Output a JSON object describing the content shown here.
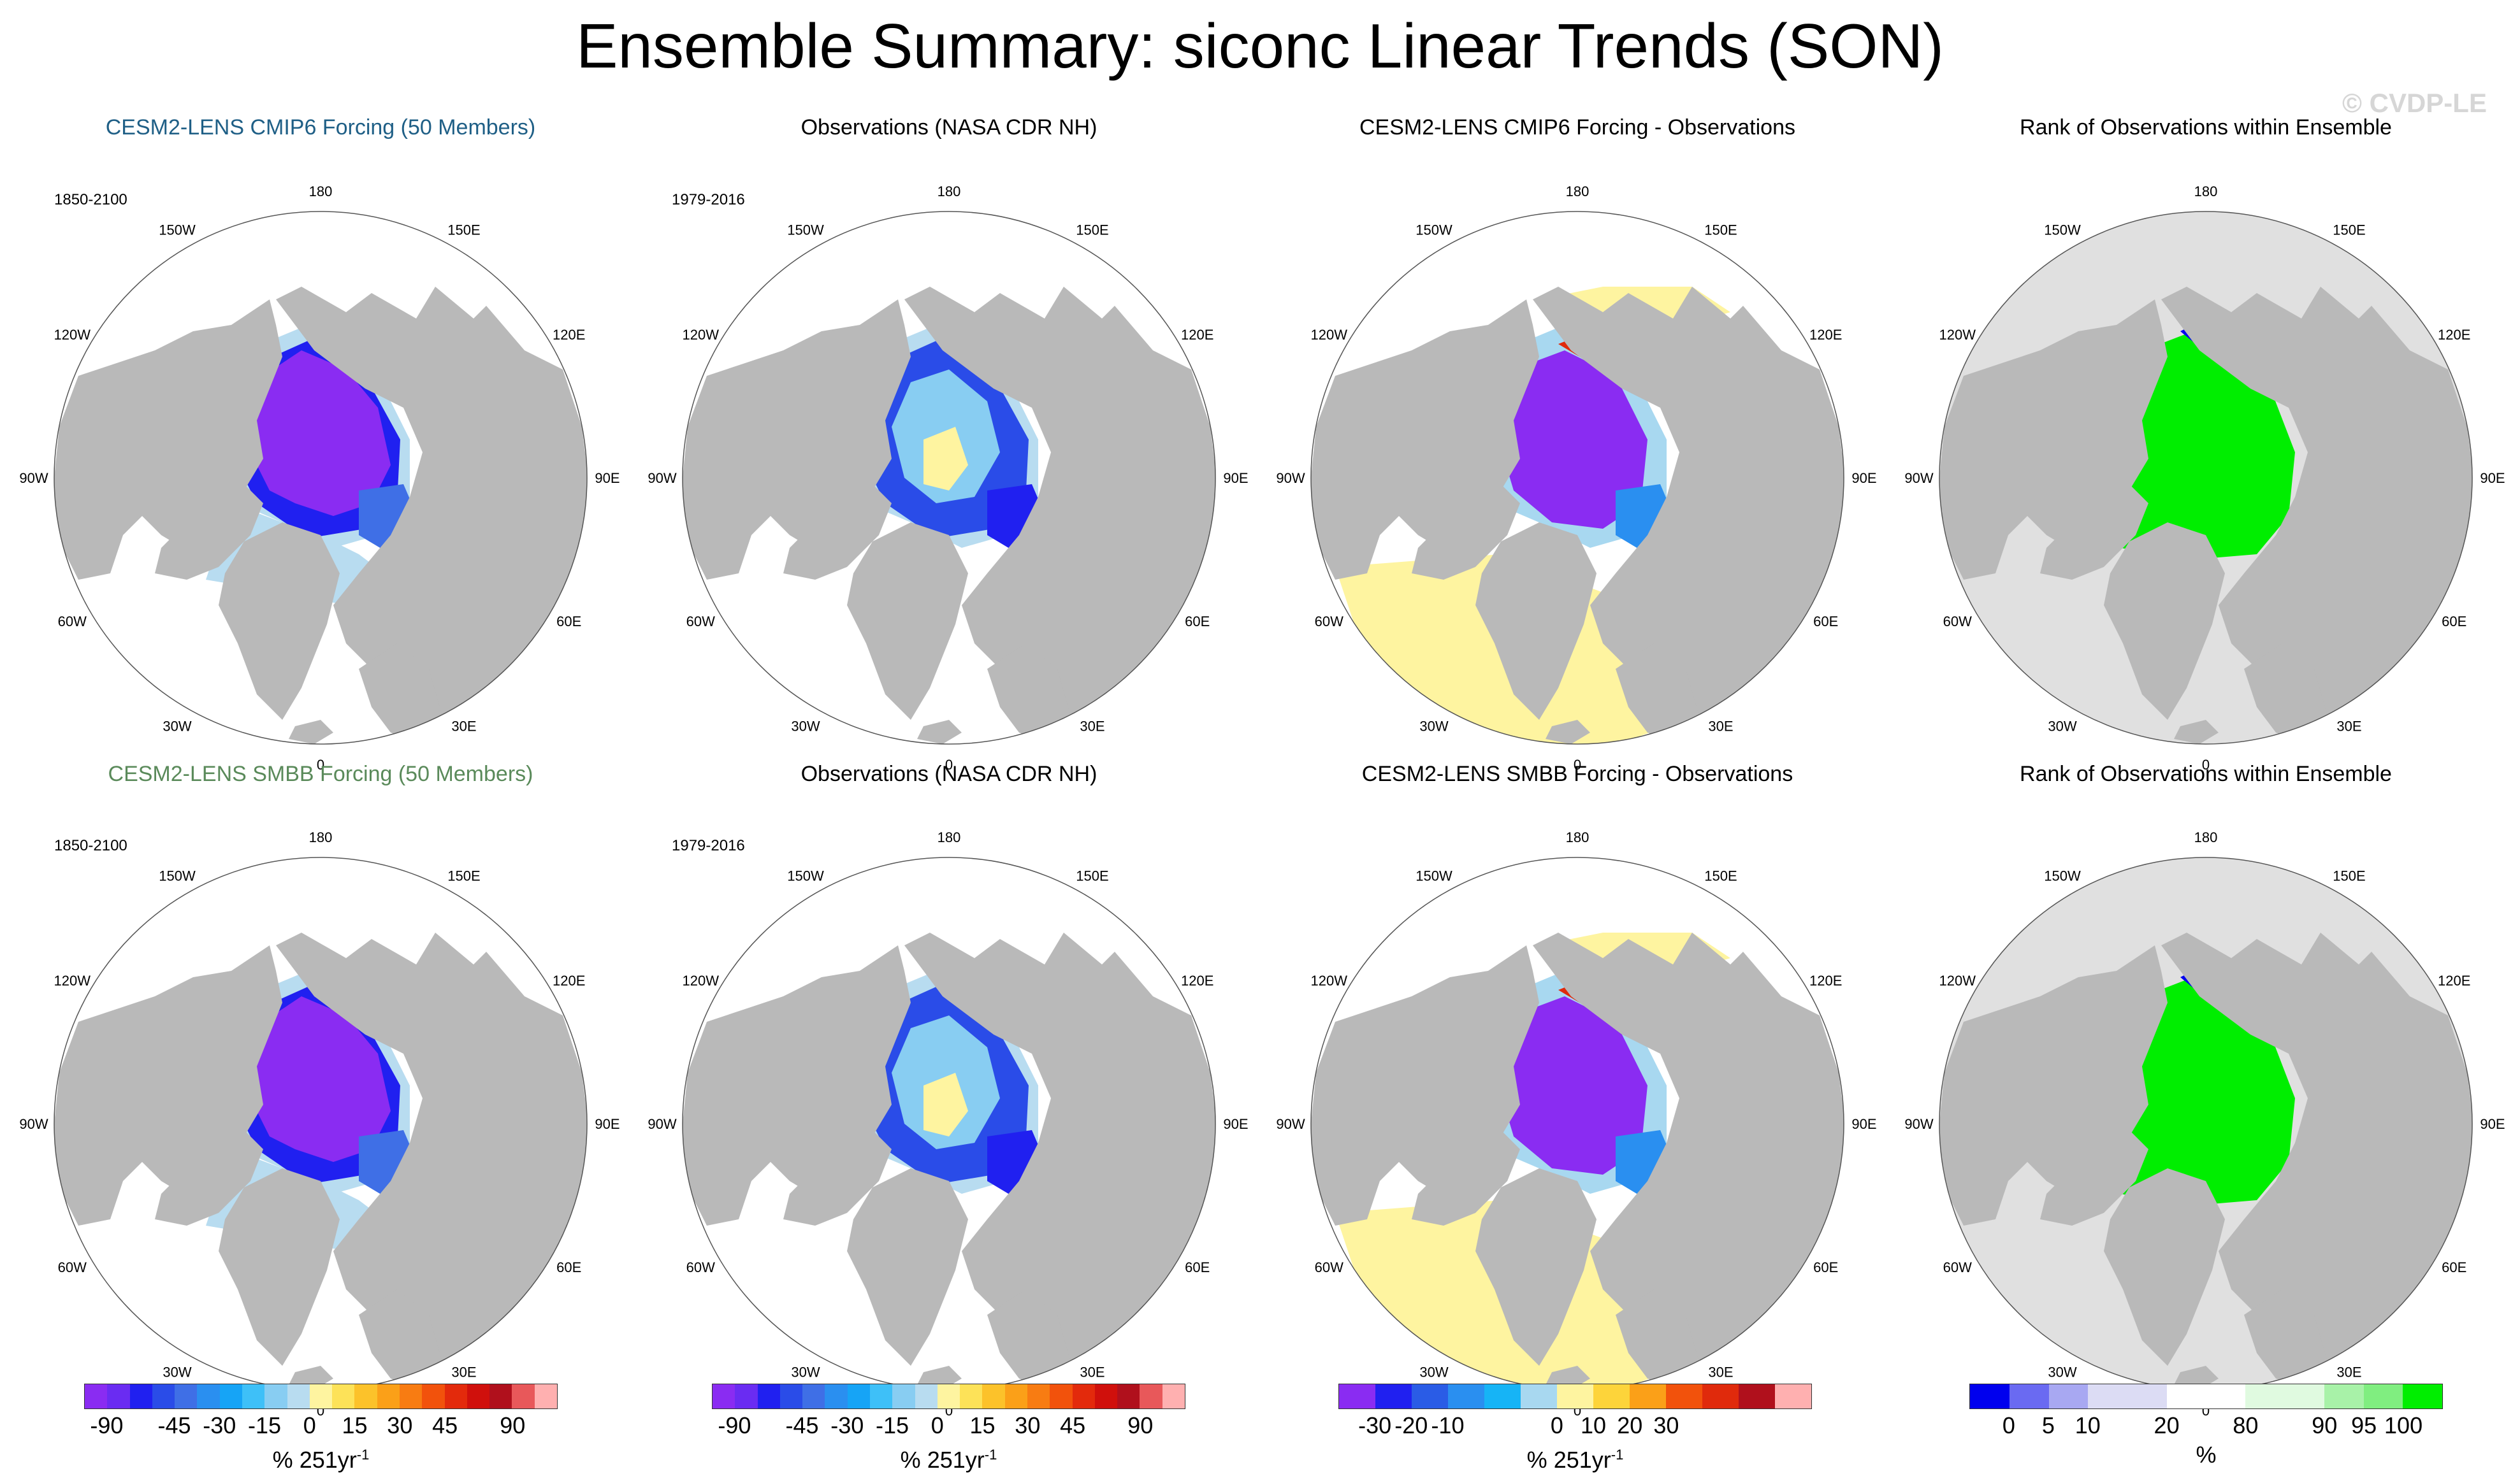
{
  "title": "Ensemble Summary: siconc Linear Trends (SON)",
  "watermark": "© CVDP-LE",
  "colors": {
    "land": "#b9b9b9",
    "rank_background": "#e0e0e0",
    "cmip6_title": "#1f5f86",
    "smbb_title": "#5a8a5a",
    "strong_decline": "#8a2cf2",
    "blue": "#1a1af0",
    "light_blue": "#b8dcf0",
    "pale_yellow": "#fef4a0",
    "green": "#00ff00"
  },
  "rows": [
    {
      "panels": [
        {
          "title": "CESM2-LENS CMIP6 Forcing (50 Members)",
          "range": "1850-2100",
          "kind": "ensemble"
        },
        {
          "title": "Observations (NASA CDR NH)",
          "range": "1979-2016",
          "kind": "obs"
        },
        {
          "title": "CESM2-LENS CMIP6 Forcing - Observations",
          "range": "",
          "kind": "diff"
        },
        {
          "title": "Rank of Observations within Ensemble",
          "range": "",
          "kind": "rank"
        }
      ]
    },
    {
      "panels": [
        {
          "title": "CESM2-LENS SMBB Forcing (50 Members)",
          "range": "1850-2100",
          "kind": "ensemble"
        },
        {
          "title": "Observations (NASA CDR NH)",
          "range": "1979-2016",
          "kind": "obs"
        },
        {
          "title": "CESM2-LENS SMBB Forcing - Observations",
          "range": "",
          "kind": "diff"
        },
        {
          "title": "Rank of Observations within Ensemble",
          "range": "",
          "kind": "rank"
        }
      ]
    }
  ],
  "longitude_labels": [
    "180",
    "150E",
    "120E",
    "90E",
    "60E",
    "30E",
    "0",
    "30W",
    "60W",
    "90W",
    "120W",
    "150W"
  ],
  "colorbars": [
    {
      "name": "trend",
      "colors": [
        "#8a2cf2",
        "#6a2cf2",
        "#2020f0",
        "#2a4ce8",
        "#3f6fe6",
        "#2a8ff0",
        "#16a4f6",
        "#3ec0f8",
        "#88cdf2",
        "#b8dcf0",
        "#fef4a0",
        "#fde258",
        "#fcc22a",
        "#fba018",
        "#f87c12",
        "#f2520c",
        "#e32a0c",
        "#d0100c",
        "#b0101c",
        "#e8585a",
        "#ffb0b0"
      ],
      "ticks": [
        "-90",
        "-45",
        "-30",
        "-15",
        "0",
        "15",
        "30",
        "45",
        "90"
      ],
      "tick_boundaries": [
        1,
        4,
        6,
        8,
        10,
        12,
        14,
        16,
        19
      ],
      "unit": "% 251yr",
      "unit_exp": "-1"
    },
    {
      "name": "trend",
      "colors": [
        "#8a2cf2",
        "#6a2cf2",
        "#2020f0",
        "#2a4ce8",
        "#3f6fe6",
        "#2a8ff0",
        "#16a4f6",
        "#3ec0f8",
        "#88cdf2",
        "#b8dcf0",
        "#fef4a0",
        "#fde258",
        "#fcc22a",
        "#fba018",
        "#f87c12",
        "#f2520c",
        "#e32a0c",
        "#d0100c",
        "#b0101c",
        "#e8585a",
        "#ffb0b0"
      ],
      "ticks": [
        "-90",
        "-45",
        "-30",
        "-15",
        "0",
        "15",
        "30",
        "45",
        "90"
      ],
      "tick_boundaries": [
        1,
        4,
        6,
        8,
        10,
        12,
        14,
        16,
        19
      ],
      "unit": "% 251yr",
      "unit_exp": "-1"
    },
    {
      "name": "difference",
      "colors": [
        "#8a2cf2",
        "#2020f0",
        "#2a5ce6",
        "#2a8ff0",
        "#16b4f6",
        "#a8d8f0",
        "#fef4a0",
        "#fdd43a",
        "#fba018",
        "#f2520c",
        "#e02a0c",
        "#b0101c",
        "#ffb0b0"
      ],
      "ticks": [
        "-30",
        "-20",
        "-10",
        "0",
        "10",
        "20",
        "30"
      ],
      "tick_boundaries": [
        1,
        2,
        3,
        6,
        7,
        8,
        9
      ],
      "unit": "% 251yr",
      "unit_exp": "-1"
    },
    {
      "name": "rank",
      "colors": [
        "#0000ee",
        "#6a6af2",
        "#a8a8f2",
        "#dcdcf4",
        "#dcdcf4",
        "#ffffff",
        "#ffffff",
        "#e0fae0",
        "#e0fae0",
        "#a8f2a8",
        "#80ee80",
        "#00ee00"
      ],
      "ticks": [
        "0",
        "5",
        "10",
        "20",
        "80",
        "90",
        "95",
        "100"
      ],
      "tick_boundaries": [
        1,
        2,
        3,
        5,
        7,
        9,
        10,
        11
      ],
      "unit": "%",
      "unit_exp": ""
    }
  ]
}
